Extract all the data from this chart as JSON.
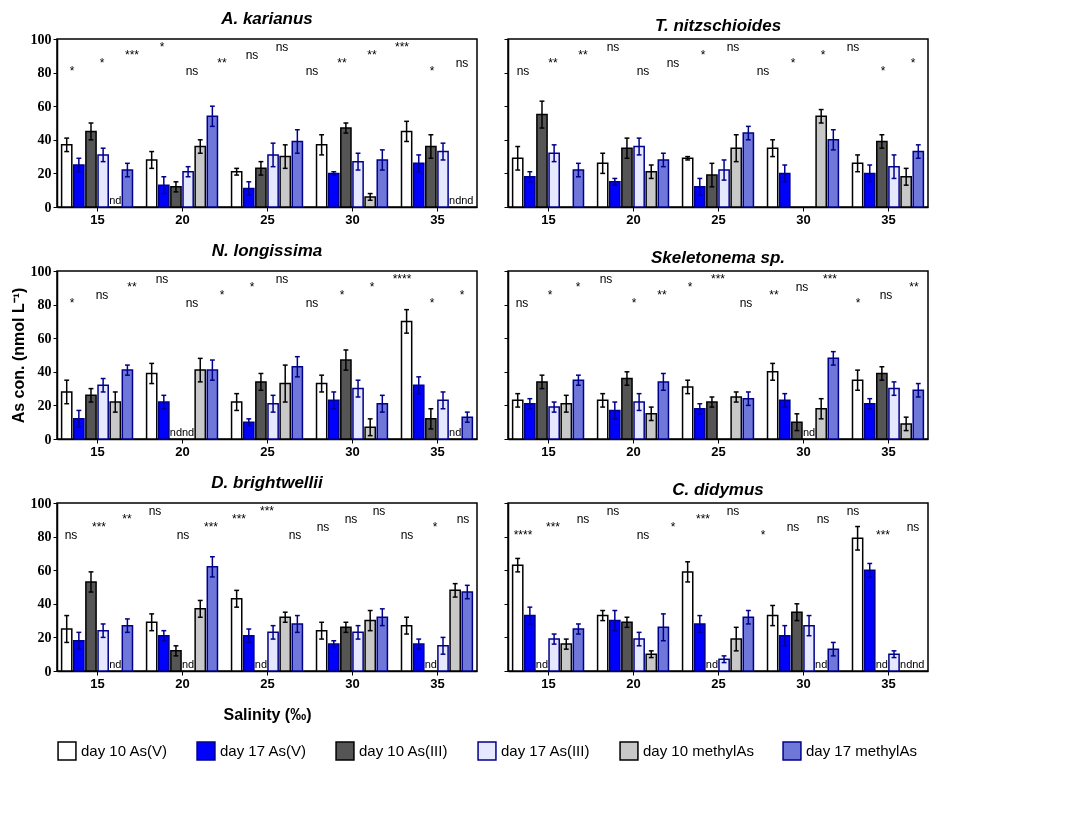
{
  "chart_data": [
    {
      "type": "bar",
      "title": "A. karianus",
      "categories": [
        "15",
        "20",
        "25",
        "30",
        "35"
      ],
      "ylim": [
        0,
        100
      ],
      "yticks": [
        0,
        20,
        40,
        60,
        80,
        100
      ],
      "grid": false,
      "legend": "bottom",
      "series": [
        {
          "name": "day 10 As(V)",
          "color": "#ffffff",
          "values": [
            37,
            28,
            21,
            37,
            45
          ],
          "errors": [
            4,
            5,
            2,
            6,
            6
          ]
        },
        {
          "name": "day 17 As(V)",
          "color": "#0000ff",
          "values": [
            25,
            13,
            11,
            20,
            26
          ],
          "errors": [
            4,
            5,
            4,
            1,
            5
          ]
        },
        {
          "name": "day 10 As(III)",
          "color": "#555555",
          "values": [
            45,
            12,
            23,
            47,
            36
          ],
          "errors": [
            5,
            3,
            4,
            3,
            7
          ]
        },
        {
          "name": "day 17 As(III)",
          "color": "#e6e8ff",
          "values": [
            31,
            21,
            31,
            27,
            33
          ],
          "errors": [
            4,
            3,
            7,
            5,
            5
          ]
        },
        {
          "name": "day 10 methylAs",
          "color": "#c8c8c8",
          "values": [
            null,
            36,
            30,
            6,
            null
          ],
          "errors": [
            null,
            4,
            7,
            2,
            null
          ],
          "value_labels": [
            "nd",
            null,
            null,
            null,
            "nd"
          ]
        },
        {
          "name": "day 17 methylAs",
          "color": "#6f78d8",
          "values": [
            22,
            54,
            39,
            28,
            null
          ],
          "errors": [
            4,
            6,
            7,
            6,
            null
          ],
          "value_labels": [
            null,
            null,
            null,
            null,
            "nd"
          ]
        }
      ],
      "annotations": [
        "*",
        "*",
        "***",
        "*",
        "ns",
        "**",
        "ns",
        "ns",
        "ns",
        "**",
        "**",
        "***",
        "*",
        "ns"
      ]
    },
    {
      "type": "bar",
      "title": "T. nitzschioides",
      "categories": [
        "15",
        "20",
        "25",
        "30",
        "35"
      ],
      "ylim": [
        0,
        100
      ],
      "yticks": [
        0,
        20,
        40,
        60,
        80,
        100
      ],
      "grid": false,
      "legend": "bottom",
      "tick_labels": "x",
      "series": [
        {
          "name": "day 10 As(V)",
          "color": "#ffffff",
          "values": [
            29,
            26,
            29,
            35,
            26
          ],
          "errors": [
            7,
            6,
            1,
            5,
            5
          ]
        },
        {
          "name": "day 17 As(V)",
          "color": "#0000ff",
          "values": [
            18,
            15,
            12,
            20,
            20
          ],
          "errors": [
            3,
            2,
            5,
            5,
            5
          ]
        },
        {
          "name": "day 10 As(III)",
          "color": "#555555",
          "values": [
            55,
            35,
            19,
            null,
            39
          ],
          "errors": [
            8,
            6,
            7,
            null,
            4
          ]
        },
        {
          "name": "day 17 As(III)",
          "color": "#e6e8ff",
          "values": [
            32,
            36,
            22,
            null,
            24
          ],
          "errors": [
            5,
            5,
            6,
            null,
            7
          ]
        },
        {
          "name": "day 10 methylAs",
          "color": "#c8c8c8",
          "values": [
            null,
            21,
            35,
            54,
            18
          ],
          "errors": [
            null,
            4,
            8,
            4,
            5
          ]
        },
        {
          "name": "day 17 methylAs",
          "color": "#6f78d8",
          "values": [
            22,
            28,
            44,
            40,
            33
          ],
          "errors": [
            4,
            4,
            4,
            6,
            4
          ]
        }
      ],
      "annotations": [
        "ns",
        "**",
        "**",
        "ns",
        "ns",
        "ns",
        "*",
        "ns",
        "ns",
        "*",
        "*",
        "ns",
        "*",
        "*"
      ]
    },
    {
      "type": "bar",
      "title": "N. longissima",
      "ylabel": "As con. (nmol L⁻¹)",
      "categories": [
        "15",
        "20",
        "25",
        "30",
        "35"
      ],
      "ylim": [
        0,
        100
      ],
      "yticks": [
        0,
        20,
        40,
        60,
        80,
        100
      ],
      "grid": false,
      "legend": "bottom",
      "series": [
        {
          "name": "day 10 As(V)",
          "color": "#ffffff",
          "values": [
            28,
            39,
            22,
            33,
            70
          ],
          "errors": [
            7,
            6,
            5,
            5,
            7
          ]
        },
        {
          "name": "day 17 As(V)",
          "color": "#0000ff",
          "values": [
            12,
            22,
            10,
            23,
            32
          ],
          "errors": [
            5,
            4,
            2,
            5,
            5
          ]
        },
        {
          "name": "day 10 As(III)",
          "color": "#555555",
          "values": [
            26,
            null,
            34,
            47,
            12
          ],
          "errors": [
            4,
            null,
            5,
            6,
            6
          ],
          "value_labels": [
            null,
            "nd",
            null,
            null,
            null
          ]
        },
        {
          "name": "day 17 As(III)",
          "color": "#e6e8ff",
          "values": [
            32,
            null,
            21,
            30,
            23
          ],
          "errors": [
            4,
            null,
            5,
            5,
            5
          ],
          "value_labels": [
            null,
            "nd",
            null,
            null,
            null
          ]
        },
        {
          "name": "day 10 methylAs",
          "color": "#c8c8c8",
          "values": [
            22,
            41,
            33,
            7,
            null
          ],
          "errors": [
            6,
            7,
            11,
            5,
            null
          ],
          "value_labels": [
            null,
            null,
            null,
            null,
            "nd"
          ]
        },
        {
          "name": "day 17 methylAs",
          "color": "#6f78d8",
          "values": [
            41,
            41,
            43,
            21,
            13
          ],
          "errors": [
            3,
            6,
            6,
            5,
            3
          ]
        }
      ],
      "annotations": [
        "*",
        "ns",
        "**",
        "ns",
        "ns",
        "*",
        "*",
        "ns",
        "ns",
        "*",
        "*",
        "****",
        "*",
        "*"
      ]
    },
    {
      "type": "bar",
      "title": "Skeletonema sp.",
      "categories": [
        "15",
        "20",
        "25",
        "30",
        "35"
      ],
      "ylim": [
        0,
        100
      ],
      "yticks": [
        0,
        20,
        40,
        60,
        80,
        100
      ],
      "grid": false,
      "legend": "bottom",
      "tick_labels": "x",
      "series": [
        {
          "name": "day 10 As(V)",
          "color": "#ffffff",
          "values": [
            23,
            23,
            31,
            40,
            35
          ],
          "errors": [
            4,
            4,
            4,
            5,
            6
          ]
        },
        {
          "name": "day 17 As(V)",
          "color": "#0000ff",
          "values": [
            21,
            17,
            18,
            23,
            21
          ],
          "errors": [
            3,
            5,
            3,
            4,
            3
          ]
        },
        {
          "name": "day 10 As(III)",
          "color": "#555555",
          "values": [
            34,
            36,
            22,
            10,
            39
          ],
          "errors": [
            4,
            4,
            3,
            5,
            4
          ]
        },
        {
          "name": "day 17 As(III)",
          "color": "#e6e8ff",
          "values": [
            19,
            22,
            null,
            null,
            30
          ],
          "errors": [
            3,
            5,
            null,
            null,
            4
          ],
          "value_labels": [
            null,
            null,
            null,
            "nd",
            null
          ]
        },
        {
          "name": "day 10 methylAs",
          "color": "#c8c8c8",
          "values": [
            21,
            15,
            25,
            18,
            9
          ],
          "errors": [
            5,
            4,
            3,
            6,
            4
          ]
        },
        {
          "name": "day 17 methylAs",
          "color": "#6f78d8",
          "values": [
            35,
            34,
            24,
            48,
            29
          ],
          "errors": [
            3,
            5,
            4,
            4,
            4
          ]
        }
      ],
      "annotations": [
        "ns",
        "*",
        "*",
        "ns",
        "*",
        "**",
        "*",
        "***",
        "ns",
        "**",
        "ns",
        "***",
        "*",
        "ns",
        "**"
      ]
    },
    {
      "type": "bar",
      "title": "D. brightwellii",
      "xlabel": "Salinity (‰)",
      "categories": [
        "15",
        "20",
        "25",
        "30",
        "35"
      ],
      "ylim": [
        0,
        100
      ],
      "yticks": [
        0,
        20,
        40,
        60,
        80,
        100
      ],
      "grid": false,
      "legend": "bottom",
      "series": [
        {
          "name": "day 10 As(V)",
          "color": "#ffffff",
          "values": [
            25,
            29,
            43,
            24,
            27
          ],
          "errors": [
            8,
            5,
            5,
            5,
            5
          ]
        },
        {
          "name": "day 17 As(V)",
          "color": "#0000ff",
          "values": [
            18,
            21,
            21,
            16,
            16
          ],
          "errors": [
            5,
            3,
            4,
            2,
            3
          ]
        },
        {
          "name": "day 10 As(III)",
          "color": "#555555",
          "values": [
            53,
            12,
            null,
            26,
            null
          ],
          "errors": [
            6,
            3,
            null,
            3,
            null
          ],
          "value_labels": [
            null,
            null,
            "nd",
            null,
            "nd"
          ]
        },
        {
          "name": "day 17 As(III)",
          "color": "#e6e8ff",
          "values": [
            24,
            null,
            23,
            23,
            15
          ],
          "errors": [
            4,
            null,
            4,
            4,
            5
          ],
          "value_labels": [
            null,
            "nd",
            null,
            null,
            null
          ]
        },
        {
          "name": "day 10 methylAs",
          "color": "#c8c8c8",
          "values": [
            null,
            37,
            32,
            30,
            48
          ],
          "errors": [
            null,
            5,
            3,
            6,
            4
          ],
          "value_labels": [
            "nd",
            null,
            null,
            null,
            null
          ]
        },
        {
          "name": "day 17 methylAs",
          "color": "#6f78d8",
          "values": [
            27,
            62,
            28,
            32,
            47
          ],
          "errors": [
            4,
            6,
            5,
            5,
            4
          ]
        }
      ],
      "annotations": [
        "ns",
        "***",
        "**",
        "ns",
        "ns",
        "***",
        "***",
        "***",
        "ns",
        "ns",
        "ns",
        "ns",
        "ns",
        "*",
        "ns"
      ]
    },
    {
      "type": "bar",
      "title": "C. didymus",
      "categories": [
        "15",
        "20",
        "25",
        "30",
        "35"
      ],
      "ylim": [
        0,
        100
      ],
      "yticks": [
        0,
        20,
        40,
        60,
        80,
        100
      ],
      "grid": false,
      "legend": "bottom",
      "tick_labels": "x",
      "series": [
        {
          "name": "day 10 As(V)",
          "color": "#ffffff",
          "values": [
            63,
            33,
            59,
            33,
            79
          ],
          "errors": [
            4,
            3,
            6,
            6,
            7
          ]
        },
        {
          "name": "day 17 As(V)",
          "color": "#0000ff",
          "values": [
            33,
            30,
            28,
            21,
            60
          ],
          "errors": [
            5,
            6,
            5,
            6,
            4
          ]
        },
        {
          "name": "day 10 As(III)",
          "color": "#555555",
          "values": [
            null,
            29,
            null,
            35,
            null
          ],
          "errors": [
            null,
            3,
            null,
            5,
            null
          ],
          "value_labels": [
            "nd",
            null,
            "nd",
            null,
            "nd"
          ]
        },
        {
          "name": "day 17 As(III)",
          "color": "#e6e8ff",
          "values": [
            19,
            19,
            7,
            27,
            10
          ],
          "errors": [
            3,
            4,
            2,
            6,
            2
          ]
        },
        {
          "name": "day 10 methylAs",
          "color": "#c8c8c8",
          "values": [
            16,
            10,
            19,
            null,
            null
          ],
          "errors": [
            3,
            2,
            7,
            null,
            null
          ],
          "value_labels": [
            null,
            null,
            null,
            "nd",
            "nd"
          ]
        },
        {
          "name": "day 17 methylAs",
          "color": "#6f78d8",
          "values": [
            25,
            26,
            32,
            13,
            null
          ],
          "errors": [
            3,
            8,
            4,
            4,
            null
          ],
          "value_labels": [
            null,
            null,
            null,
            null,
            "nd"
          ]
        }
      ],
      "annotations": [
        "****",
        "***",
        "ns",
        "ns",
        "ns",
        "*",
        "***",
        "ns",
        "*",
        "ns",
        "ns",
        "ns",
        "***",
        "ns"
      ]
    }
  ]
}
